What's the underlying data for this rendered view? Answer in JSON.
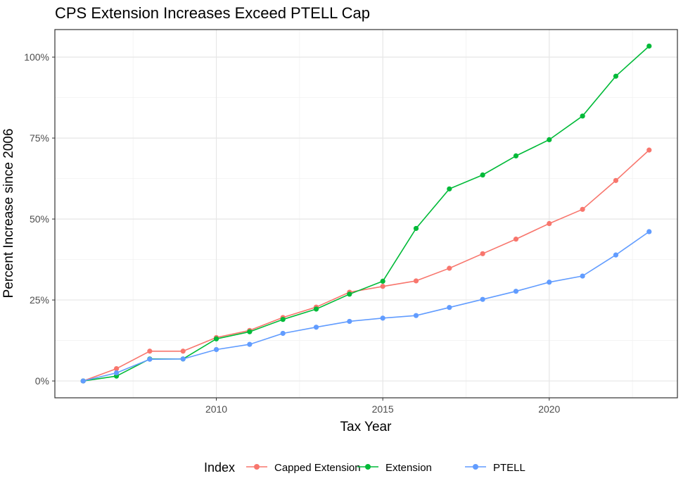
{
  "chart_data": {
    "type": "line",
    "title": "CPS Extension Increases Exceed PTELL Cap",
    "xlabel": "Tax Year",
    "ylabel": "Percent Increase since 2006",
    "x": [
      2006,
      2007,
      2008,
      2009,
      2010,
      2011,
      2012,
      2013,
      2014,
      2015,
      2016,
      2017,
      2018,
      2019,
      2020,
      2021,
      2022,
      2023
    ],
    "xlim": [
      2005.15,
      2023.85
    ],
    "ylim": [
      -5.2,
      108.5
    ],
    "x_ticks": [
      2010,
      2015,
      2020
    ],
    "x_tick_labels": [
      "2010",
      "2015",
      "2020"
    ],
    "y_ticks": [
      0,
      25,
      50,
      75,
      100
    ],
    "y_tick_labels": [
      "0%",
      "25%",
      "50%",
      "75%",
      "100%"
    ],
    "grid": true,
    "legend": {
      "title": "Index",
      "position": "bottom",
      "entries": [
        "Capped Extension",
        "Extension",
        "PTELL"
      ]
    },
    "series": [
      {
        "name": "Capped Extension",
        "color": "#F8766D",
        "values": [
          0,
          3.8,
          9.2,
          9.2,
          13.4,
          15.6,
          19.6,
          22.8,
          27.4,
          29.2,
          30.9,
          34.8,
          39.3,
          43.8,
          48.6,
          53.0,
          61.9,
          71.3
        ]
      },
      {
        "name": "Extension",
        "color": "#00BA38",
        "values": [
          0,
          1.5,
          6.8,
          6.8,
          13.0,
          15.2,
          19.0,
          22.2,
          26.8,
          30.8,
          47.1,
          59.3,
          63.6,
          69.5,
          74.5,
          81.8,
          94.1,
          103.4
        ]
      },
      {
        "name": "PTELL",
        "color": "#619CFF",
        "values": [
          0,
          2.5,
          6.7,
          6.8,
          9.7,
          11.3,
          14.7,
          16.6,
          18.4,
          19.4,
          20.2,
          22.7,
          25.2,
          27.7,
          30.5,
          32.4,
          38.9,
          46.1
        ]
      }
    ]
  }
}
